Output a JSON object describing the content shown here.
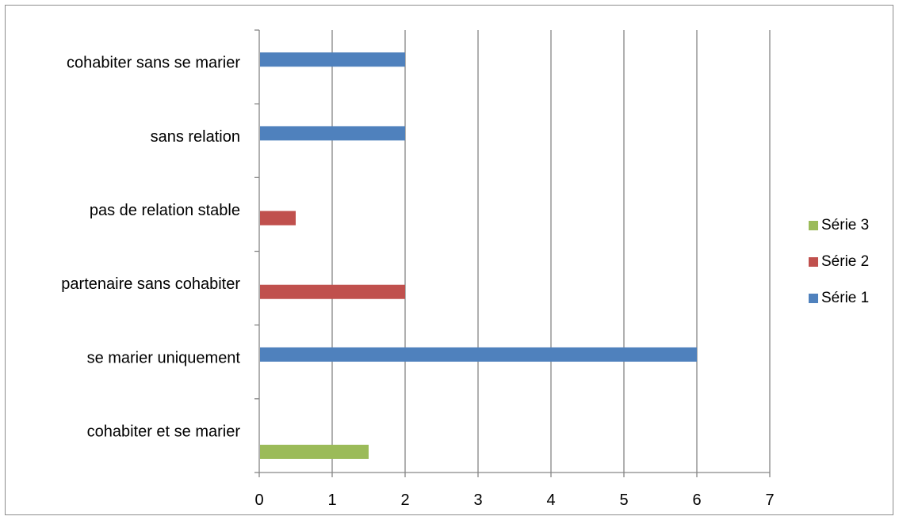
{
  "chart_data": {
    "type": "bar",
    "orientation": "horizontal",
    "categories": [
      "cohabiter et se marier",
      "se marier uniquement",
      "partenaire sans cohabiter",
      "pas de relation stable",
      "sans relation",
      "cohabiter sans se marier"
    ],
    "series": [
      {
        "name": "Série 1",
        "color": "#4f81bd",
        "values": [
          0,
          6,
          0,
          0,
          2,
          2
        ]
      },
      {
        "name": "Série 2",
        "color": "#c0504d",
        "values": [
          0,
          0,
          2,
          0.5,
          0,
          0
        ]
      },
      {
        "name": "Série 3",
        "color": "#9bbb59",
        "values": [
          1.5,
          0,
          0,
          0,
          0,
          0
        ]
      }
    ],
    "xlim": [
      0,
      7
    ],
    "xticks": [
      "0",
      "1",
      "2",
      "3",
      "4",
      "5",
      "6",
      "7"
    ],
    "grid": "vertical",
    "legend": {
      "position": "right",
      "order": [
        "Série 3",
        "Série 2",
        "Série 1"
      ]
    }
  }
}
